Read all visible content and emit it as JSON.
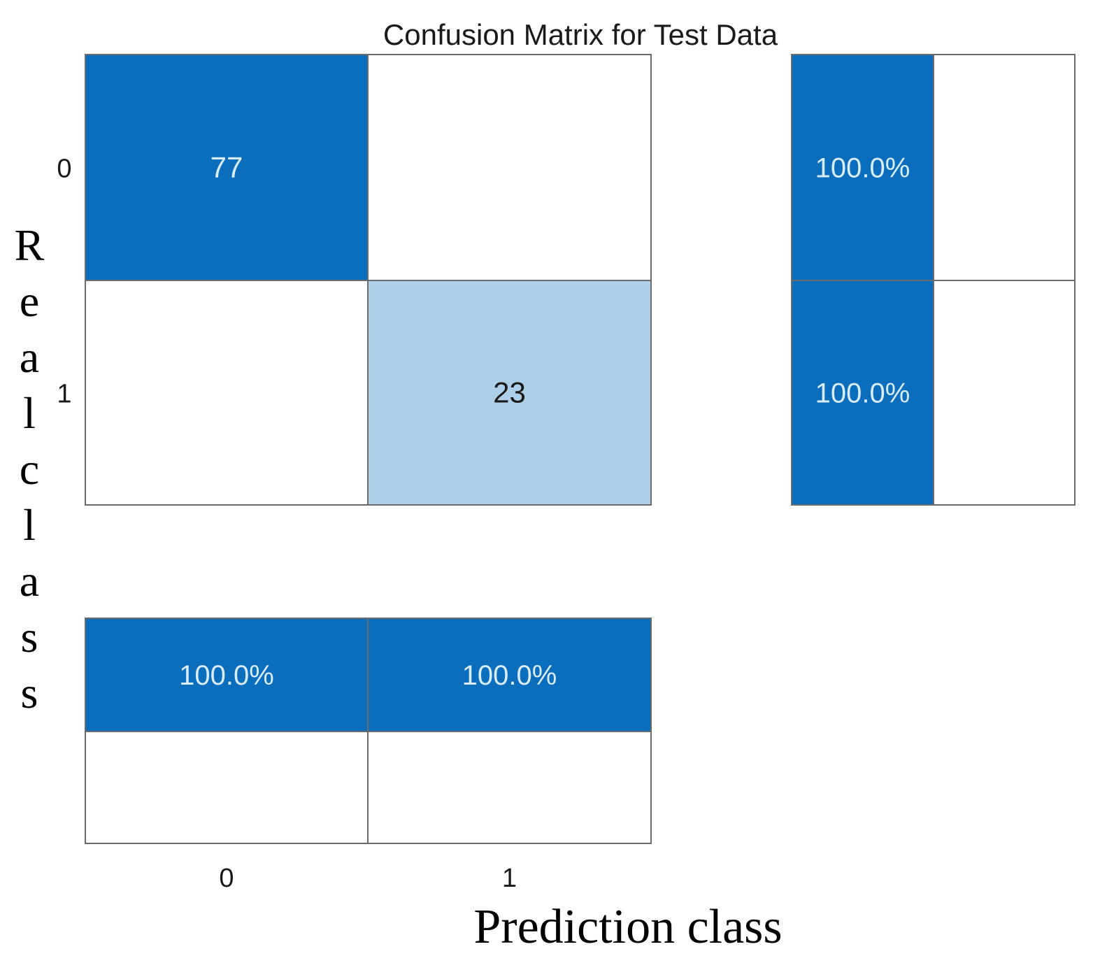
{
  "chart_data": {
    "type": "heatmap",
    "title": "Confusion Matrix for Test Data",
    "xlabel": "Prediction class",
    "ylabel": "Real class",
    "classes": [
      "0",
      "1"
    ],
    "matrix": [
      [
        77,
        null
      ],
      [
        null,
        23
      ]
    ],
    "row_summary": [
      [
        {
          "text": "100.0%",
          "value": 100
        },
        {
          "text": "",
          "value": 0
        }
      ],
      [
        {
          "text": "100.0%",
          "value": 100
        },
        {
          "text": "",
          "value": 0
        }
      ]
    ],
    "column_summary": [
      [
        {
          "text": "100.0%",
          "value": 100
        },
        {
          "text": "100.0%",
          "value": 100
        }
      ],
      [
        {
          "text": "",
          "value": 0
        },
        {
          "text": "",
          "value": 0
        }
      ]
    ],
    "colors": {
      "strong": "#0a6ebd",
      "light": "#aecfe8",
      "empty": "#ffffff",
      "border": "#6b6b6b",
      "text_on_strong": "#d8ecfb",
      "text_on_light": "#1a1a1a"
    }
  }
}
